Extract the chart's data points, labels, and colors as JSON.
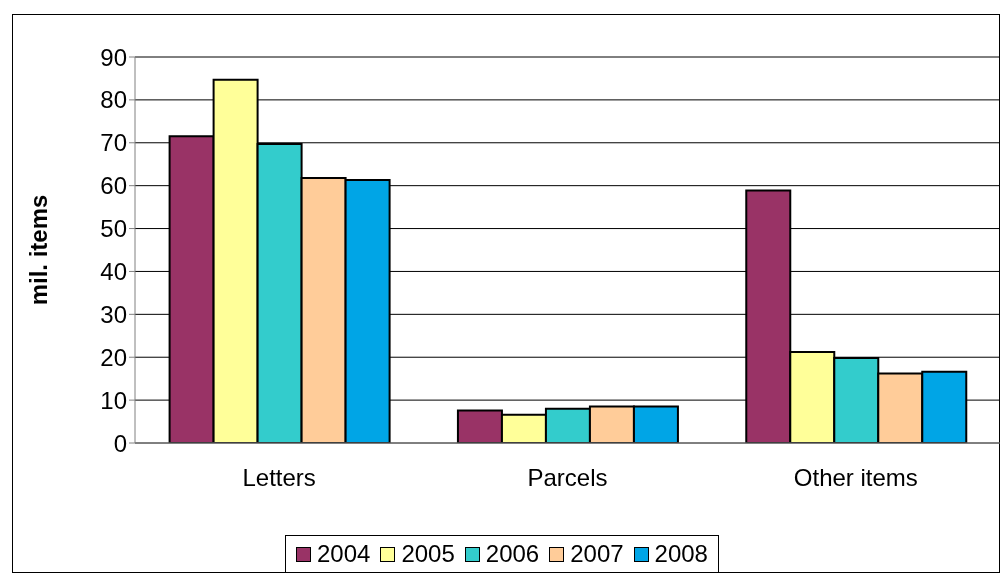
{
  "chart_data": {
    "type": "bar",
    "ylabel": "mil. items",
    "categories": [
      "Letters",
      "Parcels",
      "Other items"
    ],
    "series": [
      {
        "name": "2004",
        "color": "#993366",
        "values": [
          71.5,
          7.6,
          58.9
        ]
      },
      {
        "name": "2005",
        "color": "#ffff99",
        "values": [
          84.7,
          6.6,
          21.2
        ]
      },
      {
        "name": "2006",
        "color": "#33cccc",
        "values": [
          69.7,
          8.0,
          19.8
        ]
      },
      {
        "name": "2007",
        "color": "#ffcc99",
        "values": [
          61.8,
          8.5,
          16.2
        ]
      },
      {
        "name": "2008",
        "color": "#00a5e6",
        "values": [
          61.3,
          8.5,
          16.6
        ]
      }
    ],
    "ylim": [
      0,
      90
    ],
    "yticks": [
      0,
      10,
      20,
      30,
      40,
      50,
      60,
      70,
      80,
      90
    ],
    "grid": "y",
    "legend": "bottom"
  }
}
